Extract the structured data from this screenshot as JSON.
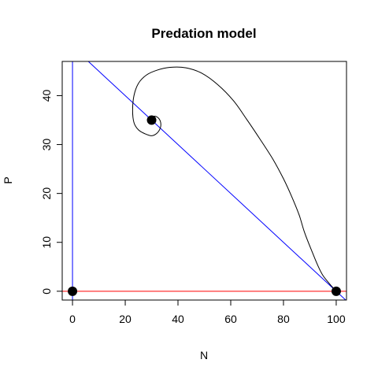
{
  "chart_data": {
    "type": "line",
    "title": "Predation model",
    "xlabel": "N",
    "ylabel": "P",
    "xlim": [
      -3.9,
      103.9
    ],
    "ylim": [
      -1.8,
      47
    ],
    "x_ticks": [
      0,
      20,
      40,
      60,
      80,
      100
    ],
    "y_ticks": [
      0,
      10,
      20,
      30,
      40
    ],
    "grid": false,
    "legend": "none",
    "colors": {
      "trajectory": "#000000",
      "n_isocline": "#0000ff",
      "p_isocline": "#ff0000",
      "axes": "#000000"
    },
    "isoclines": [
      {
        "orientation": "vertical",
        "x": 0,
        "color": "#0000ff"
      },
      {
        "orientation": "line",
        "points": [
          [
            0,
            50
          ],
          [
            100,
            0
          ]
        ],
        "color": "#0000ff"
      },
      {
        "orientation": "horizontal",
        "y": 0,
        "color": "#ff0000"
      }
    ],
    "equilibria": [
      {
        "x": 0,
        "y": 0
      },
      {
        "x": 30,
        "y": 35
      },
      {
        "x": 100,
        "y": 0
      }
    ],
    "trajectory": [
      [
        100,
        0.05
      ],
      [
        98,
        1.2
      ],
      [
        95,
        3.2
      ],
      [
        93,
        5.3
      ],
      [
        91,
        7.9
      ],
      [
        88,
        12
      ],
      [
        86,
        15.5
      ],
      [
        83,
        19.5
      ],
      [
        80,
        23
      ],
      [
        76,
        27
      ],
      [
        71,
        31.2
      ],
      [
        66,
        35.2
      ],
      [
        61,
        39
      ],
      [
        55,
        42.3
      ],
      [
        49,
        44.6
      ],
      [
        43,
        45.7
      ],
      [
        37,
        45.8
      ],
      [
        32,
        45.2
      ],
      [
        28,
        44.2
      ],
      [
        25,
        42.5
      ],
      [
        23.3,
        40
      ],
      [
        22.8,
        37
      ],
      [
        23.3,
        34.5
      ],
      [
        25,
        33
      ],
      [
        27.5,
        32.2
      ],
      [
        30,
        31.8
      ],
      [
        32,
        32.3
      ],
      [
        33.3,
        33.4
      ],
      [
        33.4,
        34.6
      ],
      [
        32.4,
        35.5
      ],
      [
        31,
        35.8
      ],
      [
        29.6,
        35.5
      ],
      [
        28.9,
        34.8
      ],
      [
        29.2,
        34.3
      ],
      [
        30,
        34.3
      ],
      [
        30.4,
        34.8
      ],
      [
        30,
        35
      ]
    ]
  }
}
